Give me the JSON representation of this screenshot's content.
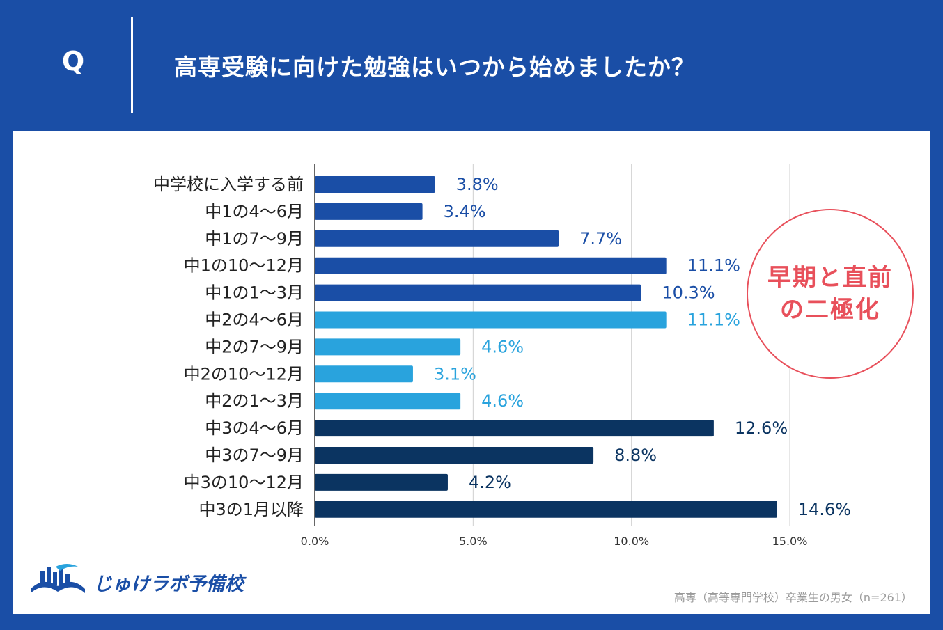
{
  "header": {
    "q_mark": "Q",
    "question": "高専受験に向けた勉強はいつから始めましたか？"
  },
  "colors": {
    "background": "#1a4ea6",
    "grade1": "#1a4ea6",
    "grade2": "#29a3dd",
    "grade3": "#0b3461",
    "badge": "#e8505b"
  },
  "badge": {
    "line1": "早期と直前",
    "line2": "の二極化"
  },
  "chart_data": {
    "type": "bar",
    "orientation": "horizontal",
    "title": "高専受験に向けた勉強はいつから始めましたか？",
    "xlabel": "",
    "ylabel": "",
    "xlim": [
      0,
      15
    ],
    "grid": true,
    "xticks": [
      "0.0%",
      "5.0%",
      "10.0%",
      "15.0%"
    ],
    "xtick_values": [
      0,
      5,
      10,
      15
    ],
    "categories": [
      "中学校に入学する前",
      "中1の4～6月",
      "中1の7～9月",
      "中1の10～12月",
      "中1の1～3月",
      "中2の4～6月",
      "中2の7～9月",
      "中2の10～12月",
      "中2の1～3月",
      "中3の4～6月",
      "中3の7～9月",
      "中3の10～12月",
      "中3の1月以降"
    ],
    "values": [
      3.8,
      3.4,
      7.7,
      11.1,
      10.3,
      11.1,
      4.6,
      3.1,
      4.6,
      12.6,
      8.8,
      4.2,
      14.6
    ],
    "labels": [
      "3.8%",
      "3.4%",
      "7.7%",
      "11.1%",
      "10.3%",
      "11.1%",
      "4.6%",
      "3.1%",
      "4.6%",
      "12.6%",
      "8.8%",
      "4.2%",
      "14.6%"
    ],
    "groups": [
      "grade1",
      "grade1",
      "grade1",
      "grade1",
      "grade1",
      "grade2",
      "grade2",
      "grade2",
      "grade2",
      "grade3",
      "grade3",
      "grade3",
      "grade3"
    ]
  },
  "logo": {
    "text": "じゅけラボ予備校",
    "icon": "open-book-icon"
  },
  "source_note": "高専（高等専門学校）卒業生の男女（n=261）"
}
